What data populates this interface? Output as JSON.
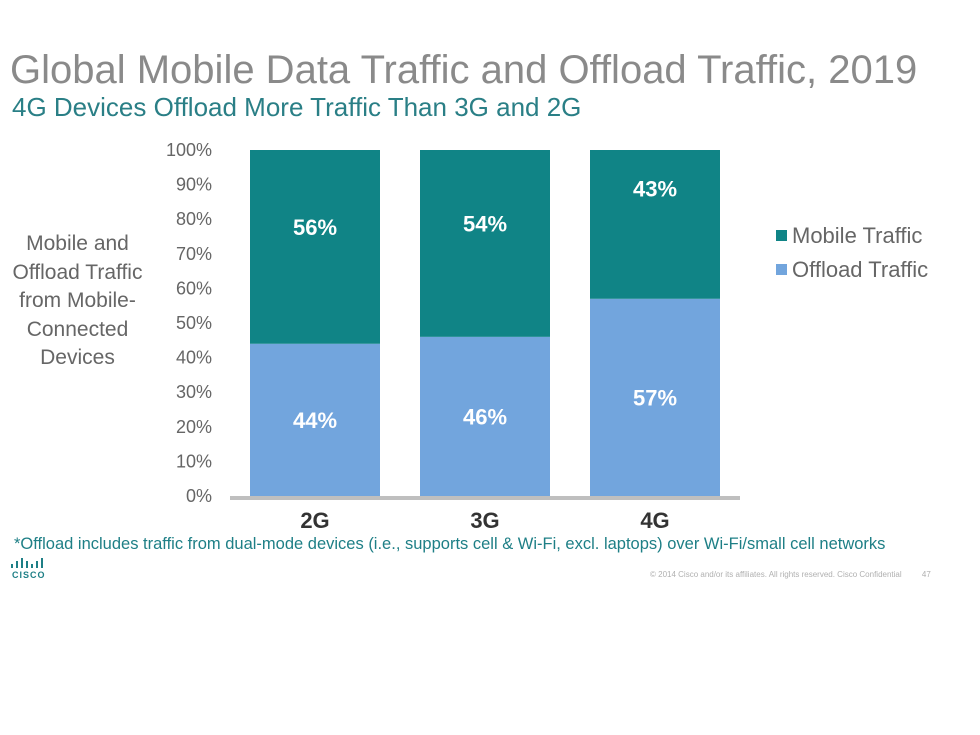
{
  "brand": {
    "logo_text": "CISCO",
    "logo_icon": "cisco-bridge-icon"
  },
  "footer": {
    "footnote": "*Offload includes traffic from dual-mode devices (i.e., supports cell & Wi-Fi, excl. laptops) over Wi-Fi/small cell networks",
    "copyright": "© 2014  Cisco and/or its affiliates. All rights reserved.   Cisco Confidential",
    "page_number": "47"
  },
  "colors": {
    "mobile": "#108486",
    "offload": "#72a5dd",
    "axis": "#bfbfbf",
    "title": "#8a8a8a",
    "subtitle": "#2a7f86"
  },
  "chart_data": {
    "type": "bar",
    "stacked": true,
    "title": "Global Mobile Data Traffic and Offload Traffic, 2019",
    "subtitle": "4G Devices Offload More Traffic Than 3G and 2G",
    "ylabel": "Mobile and Offload Traffic from Mobile-Connected Devices",
    "categories": [
      "2G",
      "3G",
      "4G"
    ],
    "series": [
      {
        "name": "Offload Traffic",
        "values": [
          44,
          46,
          57
        ],
        "labels": [
          "44%",
          "46%",
          "57%"
        ]
      },
      {
        "name": "Mobile Traffic",
        "values": [
          56,
          54,
          43
        ],
        "labels": [
          "56%",
          "54%",
          "43%"
        ]
      }
    ],
    "ylim": [
      0,
      100
    ],
    "yticks": [
      "0%",
      "10%",
      "20%",
      "30%",
      "40%",
      "50%",
      "60%",
      "70%",
      "80%",
      "90%",
      "100%"
    ],
    "legend": {
      "position": "right",
      "entries": [
        "Mobile Traffic",
        "Offload Traffic"
      ]
    },
    "grid": false
  }
}
